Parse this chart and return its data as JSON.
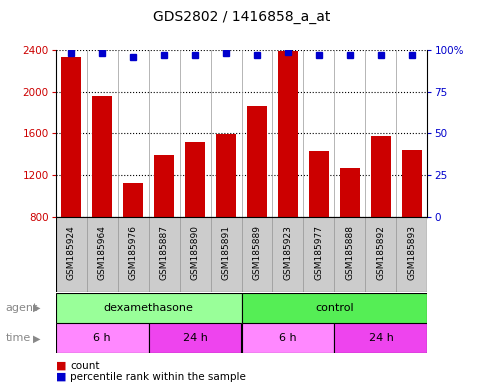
{
  "title": "GDS2802 / 1416858_a_at",
  "samples": [
    "GSM185924",
    "GSM185964",
    "GSM185976",
    "GSM185887",
    "GSM185890",
    "GSM185891",
    "GSM185889",
    "GSM185923",
    "GSM185977",
    "GSM185888",
    "GSM185892",
    "GSM185893"
  ],
  "counts": [
    2330,
    1960,
    1130,
    1390,
    1520,
    1590,
    1860,
    2390,
    1430,
    1270,
    1580,
    1440
  ],
  "percentile_ranks": [
    98,
    98,
    96,
    97,
    97,
    98,
    97,
    99,
    97,
    97,
    97,
    97
  ],
  "ylim_left": [
    800,
    2400
  ],
  "ylim_right": [
    0,
    100
  ],
  "yticks_left": [
    800,
    1200,
    1600,
    2000,
    2400
  ],
  "yticks_right": [
    0,
    25,
    50,
    75,
    100
  ],
  "ytick_right_labels": [
    "0",
    "25",
    "50",
    "75",
    "100%"
  ],
  "bar_color": "#cc0000",
  "dot_color": "#0000cc",
  "grid_color": "#000000",
  "agent_groups": [
    {
      "label": "dexamethasone",
      "start": 0,
      "end": 6,
      "color": "#99ff99"
    },
    {
      "label": "control",
      "start": 6,
      "end": 12,
      "color": "#55ee55"
    }
  ],
  "time_groups": [
    {
      "label": "6 h",
      "start": 0,
      "end": 3,
      "color": "#ff88ff"
    },
    {
      "label": "24 h",
      "start": 3,
      "end": 6,
      "color": "#ee44ee"
    },
    {
      "label": "6 h",
      "start": 6,
      "end": 9,
      "color": "#ff88ff"
    },
    {
      "label": "24 h",
      "start": 9,
      "end": 12,
      "color": "#ee44ee"
    }
  ],
  "legend_count_label": "count",
  "legend_percentile_label": "percentile rank within the sample",
  "xlabel_agent": "agent",
  "xlabel_time": "time",
  "xtick_bg_color": "#cccccc",
  "xtick_border_color": "#999999",
  "plot_border_color": "#000000"
}
